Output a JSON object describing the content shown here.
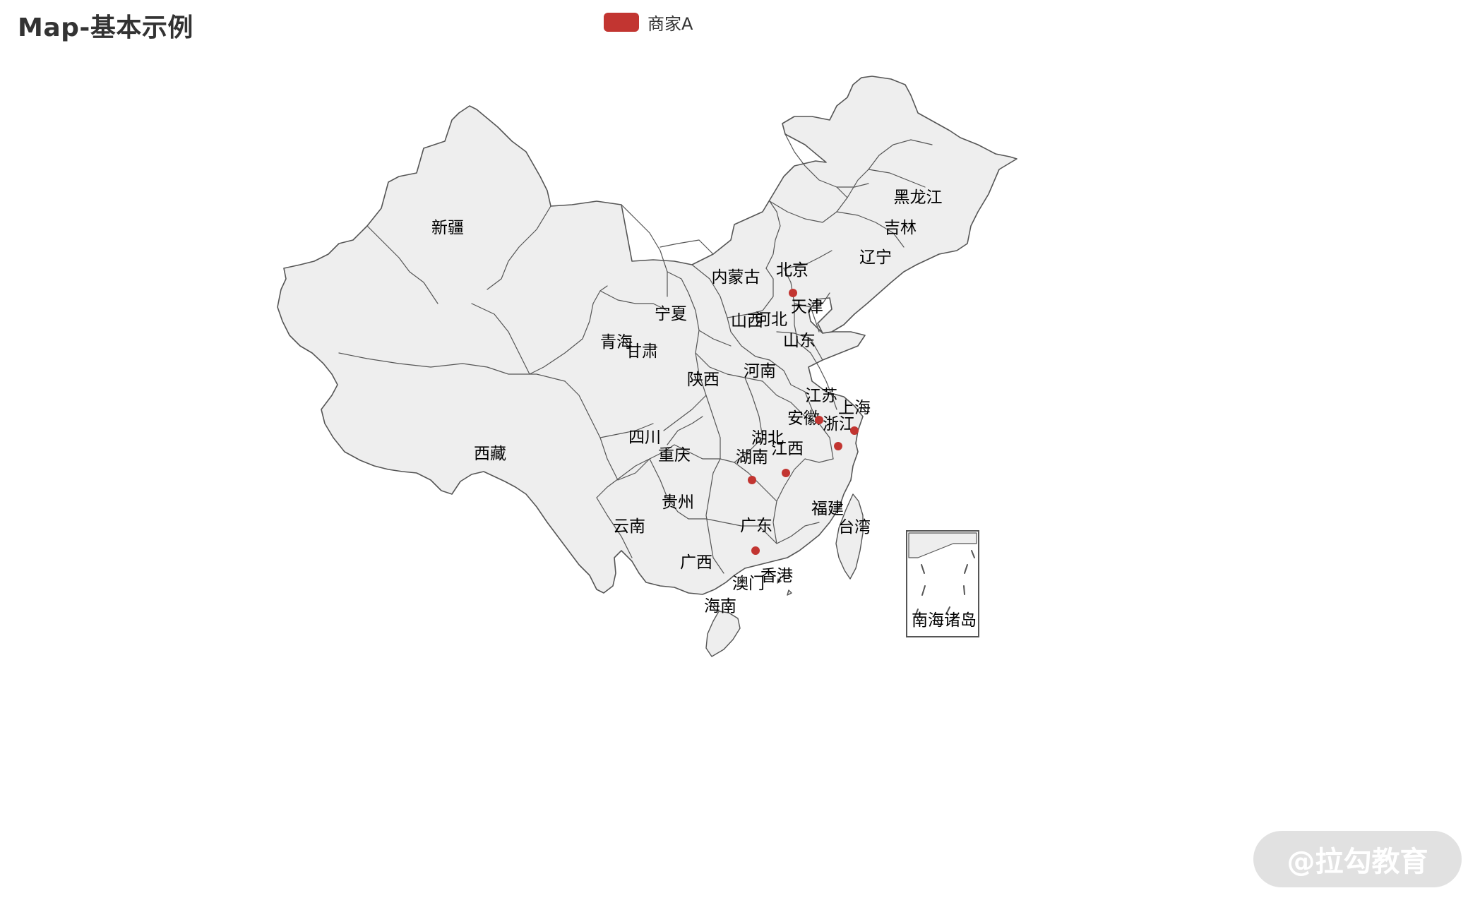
{
  "chart": {
    "title": "Map-基本示例",
    "legend": {
      "label": "商家A",
      "color": "#c23531"
    },
    "map": {
      "fill_color": "#eeeeee",
      "border_color": "#555555",
      "label_color": "#000000",
      "marker_color": "#c23531"
    }
  },
  "chart_data": {
    "type": "map",
    "title": "Map-基本示例",
    "map_name": "china",
    "legend_position": "top-center",
    "series": [
      {
        "name": "商家A",
        "points": [
          "北京",
          "安徽",
          "上海",
          "浙江",
          "江西",
          "湖南",
          "广东"
        ]
      }
    ],
    "regions": [
      "黑龙江",
      "吉林",
      "辽宁",
      "内蒙古",
      "北京",
      "天津",
      "河北",
      "山西",
      "山东",
      "宁夏",
      "新疆",
      "青海",
      "甘肃",
      "陕西",
      "河南",
      "江苏",
      "上海",
      "安徽",
      "浙江",
      "湖北",
      "江西",
      "湖南",
      "四川",
      "重庆",
      "西藏",
      "贵州",
      "福建",
      "台湾",
      "云南",
      "广西",
      "广东",
      "香港",
      "澳门",
      "海南",
      "南海诸岛"
    ]
  },
  "watermark": {
    "text": "@拉勾教育"
  }
}
